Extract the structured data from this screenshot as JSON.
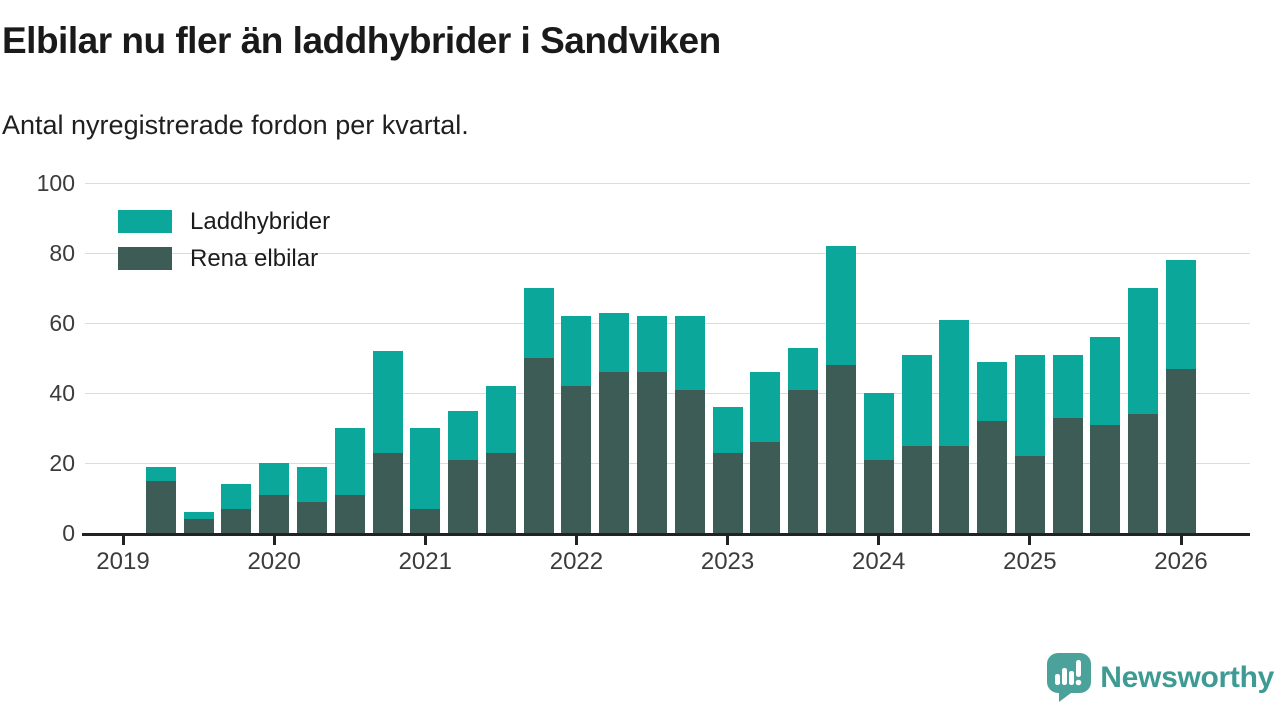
{
  "header": {
    "title": "Elbilar nu fler än laddhybrider i Sandviken",
    "subtitle": "Antal nyregistrerade fordon per kvartal."
  },
  "chart_data": {
    "type": "bar",
    "stacked": true,
    "title": "Elbilar nu fler än laddhybrider i Sandviken",
    "subtitle": "Antal nyregistrerade fordon per kvartal.",
    "ylim": [
      0,
      100
    ],
    "yticks": [
      0,
      20,
      40,
      60,
      80,
      100
    ],
    "xticks": [
      "2019",
      "2020",
      "2021",
      "2022",
      "2023",
      "2024",
      "2025",
      "2026"
    ],
    "grid": "horizontal",
    "legend_position": "top-left",
    "categories": [
      "2019 Q2",
      "2019 Q3",
      "2019 Q4",
      "2020 Q1",
      "2020 Q2",
      "2020 Q3",
      "2020 Q4",
      "2021 Q1",
      "2021 Q2",
      "2021 Q3",
      "2021 Q4",
      "2022 Q1",
      "2022 Q2",
      "2022 Q3",
      "2022 Q4",
      "2023 Q1",
      "2023 Q2",
      "2023 Q3",
      "2023 Q4",
      "2024 Q1",
      "2024 Q2",
      "2024 Q3",
      "2024 Q4",
      "2025 Q1",
      "2025 Q2",
      "2025 Q3",
      "2025 Q4",
      "2026 Q1"
    ],
    "series": [
      {
        "name": "Laddhybrider",
        "color": "#0ba79b",
        "values": [
          4,
          2,
          7,
          9,
          10,
          19,
          29,
          23,
          14,
          19,
          20,
          20,
          17,
          16,
          21,
          13,
          20,
          12,
          34,
          19,
          26,
          36,
          17,
          29,
          18,
          25,
          36,
          31
        ]
      },
      {
        "name": "Rena elbilar",
        "color": "#3e5c56",
        "values": [
          15,
          4,
          7,
          11,
          9,
          11,
          23,
          7,
          21,
          23,
          50,
          42,
          46,
          46,
          41,
          23,
          26,
          41,
          48,
          21,
          25,
          25,
          32,
          22,
          33,
          31,
          34,
          47
        ]
      }
    ],
    "totals": [
      19,
      6,
      14,
      20,
      19,
      30,
      52,
      30,
      35,
      42,
      70,
      62,
      63,
      62,
      62,
      36,
      46,
      53,
      82,
      40,
      51,
      61,
      49,
      51,
      51,
      56,
      70,
      78
    ]
  },
  "footer": {
    "brand": "Newsworthy",
    "brand_color": "#3e9b94"
  }
}
